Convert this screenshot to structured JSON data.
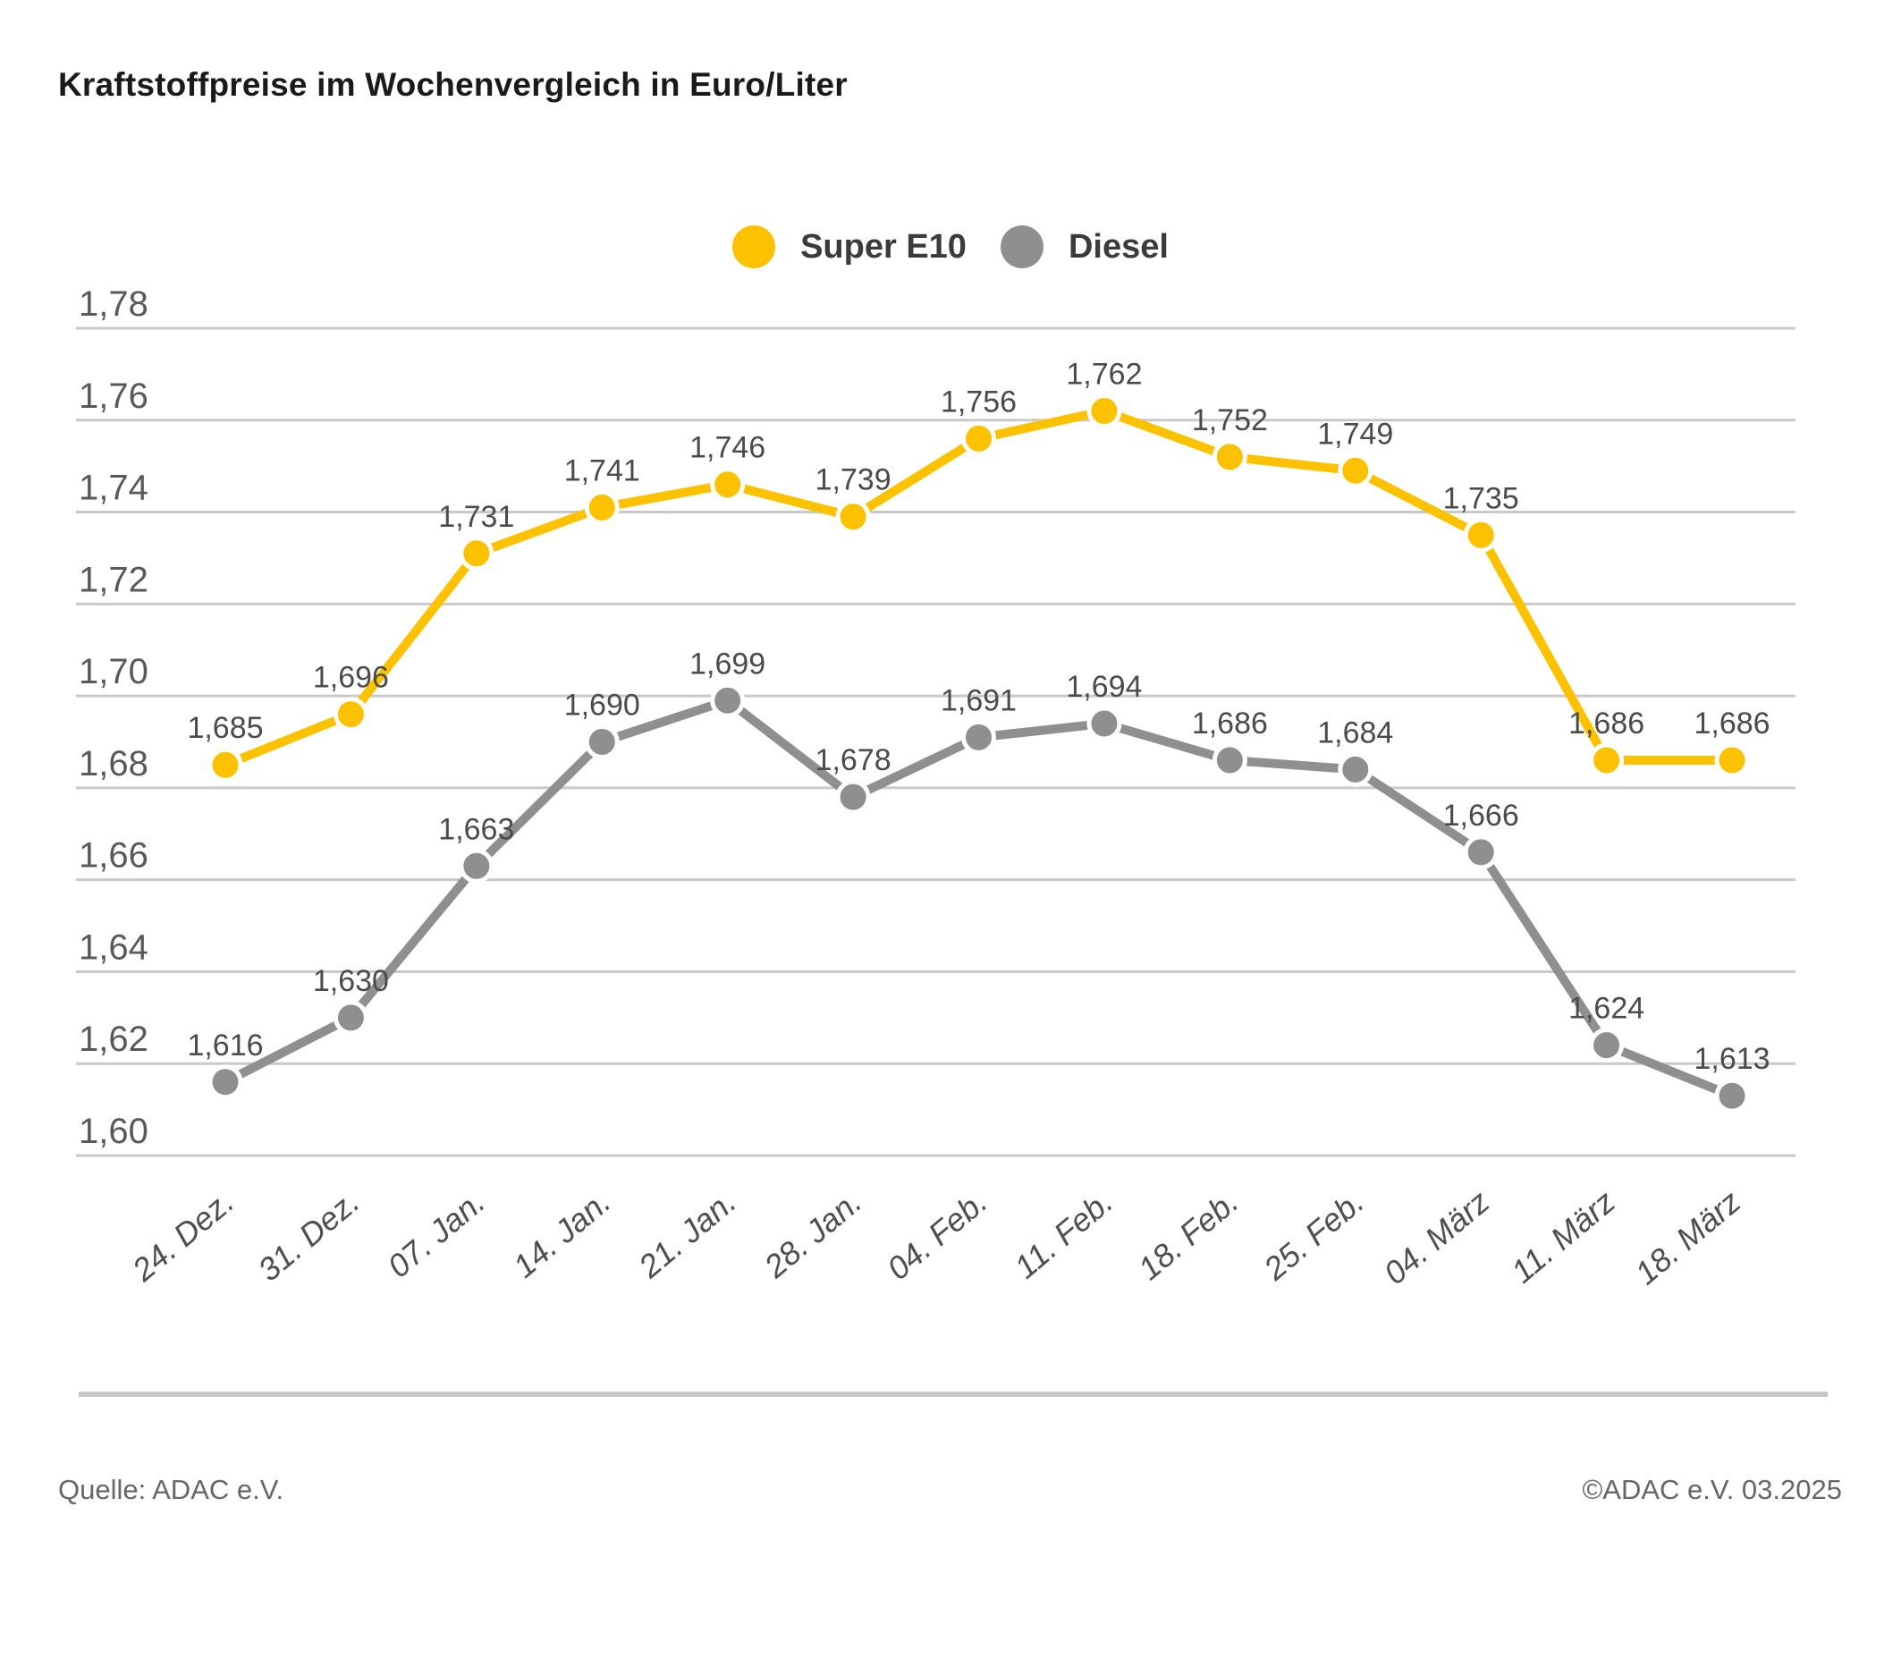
{
  "title": "Kraftstoffpreise im Wochenvergleich in Euro/Liter",
  "legend": [
    {
      "label": "Super E10",
      "color": "#fcc200"
    },
    {
      "label": "Diesel",
      "color": "#8f8f8f"
    }
  ],
  "chart_data": {
    "type": "line",
    "title": "Kraftstoffpreise im Wochenvergleich in Euro/Liter",
    "xlabel": "",
    "ylabel": "Euro/Liter",
    "grid": true,
    "legend_position": "top",
    "y_min": 1.6,
    "y_max": 1.78,
    "y_ticks": [
      "1,78",
      "1,76",
      "1,74",
      "1,72",
      "1,70",
      "1,68",
      "1,66",
      "1,64",
      "1,62",
      "1,60"
    ],
    "categories": [
      "24. Dez.",
      "31. Dez.",
      "07. Jan.",
      "14. Jan.",
      "21. Jan.",
      "28. Jan.",
      "04. Feb.",
      "11. Feb.",
      "18. Feb.",
      "25. Feb.",
      "04. März",
      "11. März",
      "18. März"
    ],
    "series": [
      {
        "name": "Super E10",
        "color": "#fcc200",
        "values": [
          1.685,
          1.696,
          1.731,
          1.741,
          1.746,
          1.739,
          1.756,
          1.762,
          1.752,
          1.749,
          1.735,
          1.686,
          1.686
        ],
        "labels": [
          "1,685",
          "1,696",
          "1,731",
          "1,741",
          "1,746",
          "1,739",
          "1,756",
          "1,762",
          "1,752",
          "1,749",
          "1,735",
          "1,686",
          "1,686"
        ]
      },
      {
        "name": "Diesel",
        "color": "#8f8f8f",
        "values": [
          1.616,
          1.63,
          1.663,
          1.69,
          1.699,
          1.678,
          1.691,
          1.694,
          1.686,
          1.684,
          1.666,
          1.624,
          1.613
        ],
        "labels": [
          "1,616",
          "1,630",
          "1,663",
          "1,690",
          "1,699",
          "1,678",
          "1,691",
          "1,694",
          "1,686",
          "1,684",
          "1,666",
          "1,624",
          "1,613"
        ]
      }
    ]
  },
  "footer": {
    "source": "Quelle: ADAC e.V.",
    "copyright": "©ADAC e.V. 03.2025"
  },
  "colors": {
    "gridline": "#c9c9c9",
    "y_tick_text": "#59595b",
    "x_tick_text": "#4f4f4f",
    "data_label_text": "#4b4b4b",
    "marker_halo": "#ffffff"
  }
}
